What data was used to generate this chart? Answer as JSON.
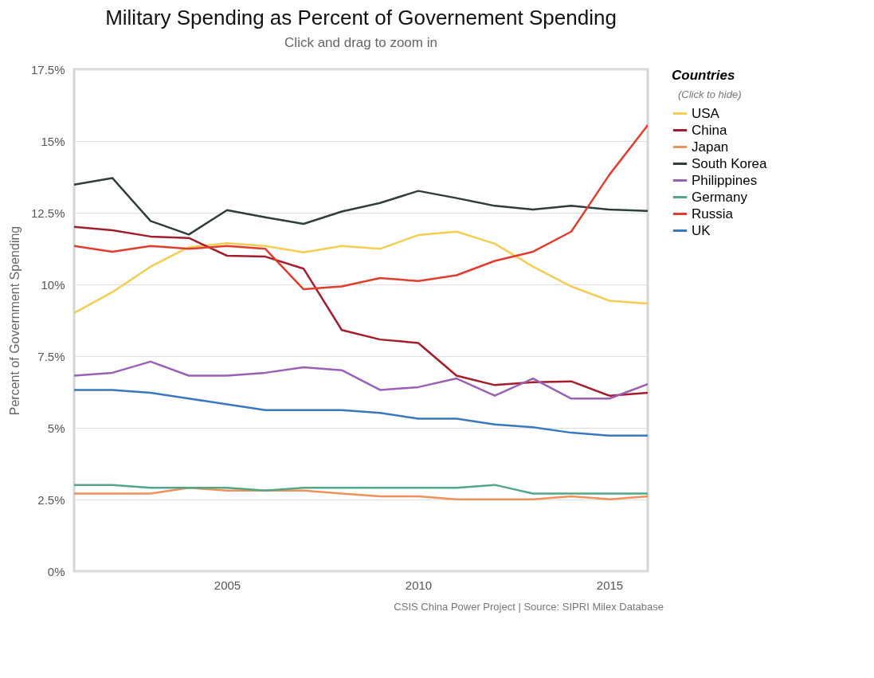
{
  "chart_data": {
    "type": "line",
    "title": "Military Spending as Percent of Governement Spending",
    "subtitle": "Click and drag to zoom in",
    "ylabel": "Percent of Government Spending",
    "legend_title": "Countries",
    "annotations": [
      "CSIS China Power Project | Source: SIPRI Milex Database",
      "(Click to hide)"
    ],
    "x": [
      2001,
      2002,
      2003,
      2004,
      2005,
      2006,
      2007,
      2008,
      2009,
      2010,
      2011,
      2012,
      2013,
      2014,
      2015,
      2016
    ],
    "series": [
      {
        "name": "USA",
        "color": "#f5cd55",
        "values": [
          9.0,
          9.73,
          10.62,
          11.3,
          11.44,
          11.34,
          11.12,
          11.34,
          11.24,
          11.72,
          11.84,
          11.42,
          10.62,
          9.93,
          9.43,
          9.33
        ]
      },
      {
        "name": "China",
        "color": "#a31d2b",
        "values": [
          12.01,
          11.89,
          11.67,
          11.62,
          11.0,
          10.97,
          10.55,
          8.41,
          8.08,
          7.96,
          6.82,
          6.49,
          6.59,
          6.62,
          6.12,
          6.22
        ]
      },
      {
        "name": "Japan",
        "color": "#f0915a",
        "values": [
          2.71,
          2.71,
          2.71,
          2.91,
          2.81,
          2.81,
          2.81,
          2.71,
          2.61,
          2.61,
          2.51,
          2.51,
          2.51,
          2.61,
          2.51,
          2.61
        ]
      },
      {
        "name": "South Korea",
        "color": "#2f3d3f",
        "values": [
          13.48,
          13.71,
          12.21,
          11.74,
          12.59,
          12.34,
          12.11,
          12.54,
          12.84,
          13.26,
          13.01,
          12.74,
          12.61,
          12.74,
          12.61,
          12.56
        ]
      },
      {
        "name": "Philippines",
        "color": "#9b5fb4",
        "values": [
          6.82,
          6.92,
          7.31,
          6.82,
          6.82,
          6.92,
          7.11,
          7.01,
          6.32,
          6.42,
          6.72,
          6.12,
          6.72,
          6.02,
          6.02,
          6.52
        ]
      },
      {
        "name": "Germany",
        "color": "#52a886",
        "values": [
          3.01,
          3.01,
          2.91,
          2.91,
          2.91,
          2.81,
          2.91,
          2.91,
          2.91,
          2.91,
          2.91,
          3.01,
          2.71,
          2.71,
          2.71,
          2.71
        ]
      },
      {
        "name": "Russia",
        "color": "#e23d2c",
        "values": [
          11.34,
          11.14,
          11.34,
          11.24,
          11.34,
          11.24,
          9.83,
          9.93,
          10.22,
          10.12,
          10.32,
          10.82,
          11.14,
          11.84,
          13.83,
          15.55
        ]
      },
      {
        "name": "UK",
        "color": "#3a78c0",
        "values": [
          6.32,
          6.32,
          6.22,
          6.02,
          5.82,
          5.62,
          5.62,
          5.62,
          5.52,
          5.32,
          5.32,
          5.12,
          5.02,
          4.83,
          4.73,
          4.73
        ]
      }
    ],
    "xlim": [
      2001,
      2016
    ],
    "xticks": [
      2005,
      2010,
      2015
    ],
    "ylim": [
      0,
      17.5
    ],
    "yticks": [
      {
        "value": 0,
        "label": "0%"
      },
      {
        "value": 2.5,
        "label": "2.5%"
      },
      {
        "value": 5,
        "label": "5%"
      },
      {
        "value": 7.5,
        "label": "7.5%"
      },
      {
        "value": 10,
        "label": "10%"
      },
      {
        "value": 12.5,
        "label": "12.5%"
      },
      {
        "value": 15,
        "label": "15%"
      },
      {
        "value": 17.5,
        "label": "17.5%"
      }
    ],
    "grid": "y",
    "legend": "right",
    "marker": "none",
    "line_style": "solid"
  }
}
